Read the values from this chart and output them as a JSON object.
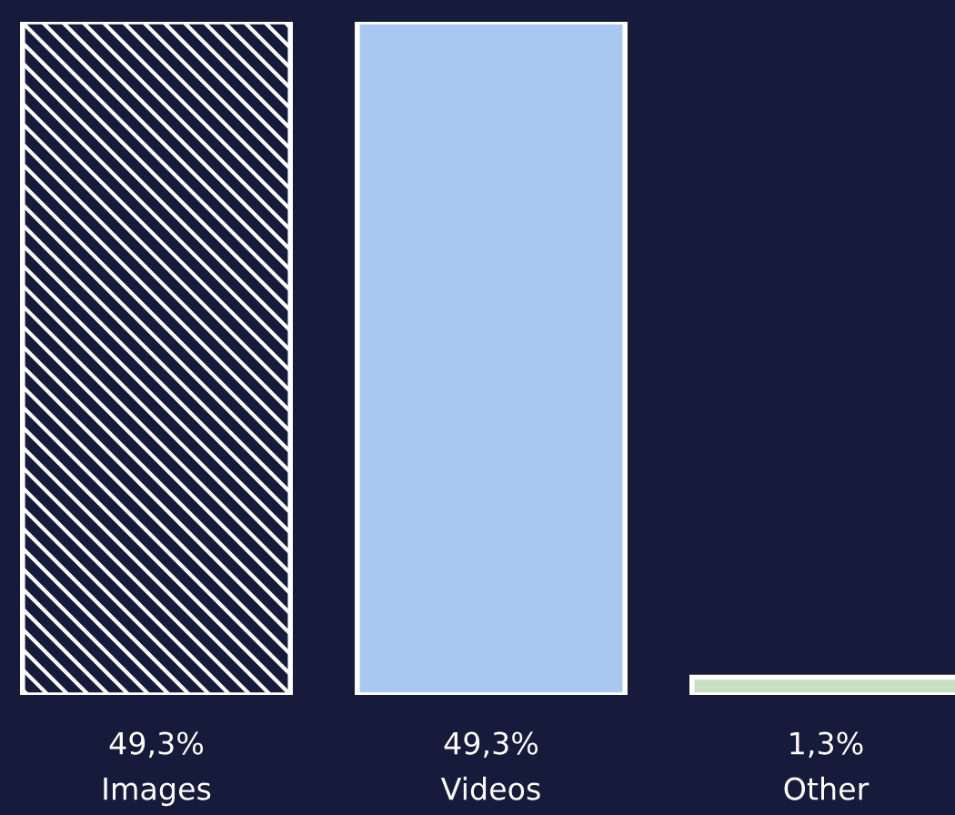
{
  "chart_data": {
    "type": "bar",
    "categories": [
      "Images",
      "Videos",
      "Other"
    ],
    "values": [
      49.3,
      49.3,
      1.3
    ],
    "colors": [
      "#171b3b",
      "#a8c8f2",
      "#c9dfc4"
    ],
    "value_labels": [
      "49,3%",
      "49,3%",
      "1,3%"
    ]
  }
}
